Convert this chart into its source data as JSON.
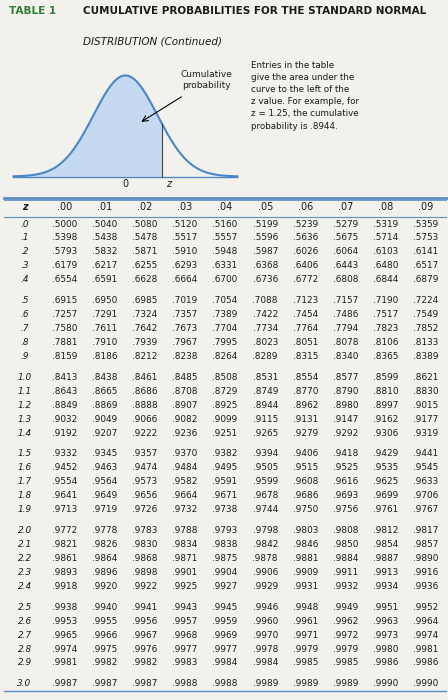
{
  "title_label": "TABLE 1",
  "title_main": "CUMULATIVE PROBABILITIES FOR THE STANDARD NORMAL",
  "title_sub": "DISTRIBUTION (Continued)",
  "note_text": "Entries in the table\ngive the area under the\ncurve to the left of the\nz value. For example, for\nz = 1.25, the cumulative\nprobability is .8944.",
  "cumulative_label": "Cumulative\nprobability",
  "col_headers": [
    "z",
    ".00",
    ".01",
    ".02",
    ".03",
    ".04",
    ".05",
    ".06",
    ".07",
    ".08",
    ".09"
  ],
  "rows": [
    [
      ".0",
      ".5000",
      ".5040",
      ".5080",
      ".5120",
      ".5160",
      ".5199",
      ".5239",
      ".5279",
      ".5319",
      ".5359"
    ],
    [
      ".1",
      ".5398",
      ".5438",
      ".5478",
      ".5517",
      ".5557",
      ".5596",
      ".5636",
      ".5675",
      ".5714",
      ".5753"
    ],
    [
      ".2",
      ".5793",
      ".5832",
      ".5871",
      ".5910",
      ".5948",
      ".5987",
      ".6026",
      ".6064",
      ".6103",
      ".6141"
    ],
    [
      ".3",
      ".6179",
      ".6217",
      ".6255",
      ".6293",
      ".6331",
      ".6368",
      ".6406",
      ".6443",
      ".6480",
      ".6517"
    ],
    [
      ".4",
      ".6554",
      ".6591",
      ".6628",
      ".6664",
      ".6700",
      ".6736",
      ".6772",
      ".6808",
      ".6844",
      ".6879"
    ],
    [
      ".5",
      ".6915",
      ".6950",
      ".6985",
      ".7019",
      ".7054",
      ".7088",
      ".7123",
      ".7157",
      ".7190",
      ".7224"
    ],
    [
      ".6",
      ".7257",
      ".7291",
      ".7324",
      ".7357",
      ".7389",
      ".7422",
      ".7454",
      ".7486",
      ".7517",
      ".7549"
    ],
    [
      ".7",
      ".7580",
      ".7611",
      ".7642",
      ".7673",
      ".7704",
      ".7734",
      ".7764",
      ".7794",
      ".7823",
      ".7852"
    ],
    [
      ".8",
      ".7881",
      ".7910",
      ".7939",
      ".7967",
      ".7995",
      ".8023",
      ".8051",
      ".8078",
      ".8106",
      ".8133"
    ],
    [
      ".9",
      ".8159",
      ".8186",
      ".8212",
      ".8238",
      ".8264",
      ".8289",
      ".8315",
      ".8340",
      ".8365",
      ".8389"
    ],
    [
      "1.0",
      ".8413",
      ".8438",
      ".8461",
      ".8485",
      ".8508",
      ".8531",
      ".8554",
      ".8577",
      ".8599",
      ".8621"
    ],
    [
      "1.1",
      ".8643",
      ".8665",
      ".8686",
      ".8708",
      ".8729",
      ".8749",
      ".8770",
      ".8790",
      ".8810",
      ".8830"
    ],
    [
      "1.2",
      ".8849",
      ".8869",
      ".8888",
      ".8907",
      ".8925",
      ".8944",
      ".8962",
      ".8980",
      ".8997",
      ".9015"
    ],
    [
      "1.3",
      ".9032",
      ".9049",
      ".9066",
      ".9082",
      ".9099",
      ".9115",
      ".9131",
      ".9147",
      ".9162",
      ".9177"
    ],
    [
      "1.4",
      ".9192",
      ".9207",
      ".9222",
      ".9236",
      ".9251",
      ".9265",
      ".9279",
      ".9292",
      ".9306",
      ".9319"
    ],
    [
      "1.5",
      ".9332",
      ".9345",
      ".9357",
      ".9370",
      ".9382",
      ".9394",
      ".9406",
      ".9418",
      ".9429",
      ".9441"
    ],
    [
      "1.6",
      ".9452",
      ".9463",
      ".9474",
      ".9484",
      ".9495",
      ".9505",
      ".9515",
      ".9525",
      ".9535",
      ".9545"
    ],
    [
      "1.7",
      ".9554",
      ".9564",
      ".9573",
      ".9582",
      ".9591",
      ".9599",
      ".9608",
      ".9616",
      ".9625",
      ".9633"
    ],
    [
      "1.8",
      ".9641",
      ".9649",
      ".9656",
      ".9664",
      ".9671",
      ".9678",
      ".9686",
      ".9693",
      ".9699",
      ".9706"
    ],
    [
      "1.9",
      ".9713",
      ".9719",
      ".9726",
      ".9732",
      ".9738",
      ".9744",
      ".9750",
      ".9756",
      ".9761",
      ".9767"
    ],
    [
      "2.0",
      ".9772",
      ".9778",
      ".9783",
      ".9788",
      ".9793",
      ".9798",
      ".9803",
      ".9808",
      ".9812",
      ".9817"
    ],
    [
      "2.1",
      ".9821",
      ".9826",
      ".9830",
      ".9834",
      ".9838",
      ".9842",
      ".9846",
      ".9850",
      ".9854",
      ".9857"
    ],
    [
      "2.2",
      ".9861",
      ".9864",
      ".9868",
      ".9871",
      ".9875",
      ".9878",
      ".9881",
      ".9884",
      ".9887",
      ".9890"
    ],
    [
      "2.3",
      ".9893",
      ".9896",
      ".9898",
      ".9901",
      ".9904",
      ".9906",
      ".9909",
      ".9911",
      ".9913",
      ".9916"
    ],
    [
      "2.4",
      ".9918",
      ".9920",
      ".9922",
      ".9925",
      ".9927",
      ".9929",
      ".9931",
      ".9932",
      ".9934",
      ".9936"
    ],
    [
      "2.5",
      ".9938",
      ".9940",
      ".9941",
      ".9943",
      ".9945",
      ".9946",
      ".9948",
      ".9949",
      ".9951",
      ".9952"
    ],
    [
      "2.6",
      ".9953",
      ".9955",
      ".9956",
      ".9957",
      ".9959",
      ".9960",
      ".9961",
      ".9962",
      ".9963",
      ".9964"
    ],
    [
      "2.7",
      ".9965",
      ".9966",
      ".9967",
      ".9968",
      ".9969",
      ".9970",
      ".9971",
      ".9972",
      ".9973",
      ".9974"
    ],
    [
      "2.8",
      ".9974",
      ".9975",
      ".9976",
      ".9977",
      ".9977",
      ".9978",
      ".9979",
      ".9979",
      ".9980",
      ".9981"
    ],
    [
      "2.9",
      ".9981",
      ".9982",
      ".9982",
      ".9983",
      ".9984",
      ".9984",
      ".9985",
      ".9985",
      ".9986",
      ".9986"
    ],
    [
      "3.0",
      ".9987",
      ".9987",
      ".9987",
      ".9988",
      ".9988",
      ".9989",
      ".9989",
      ".9989",
      ".9990",
      ".9990"
    ]
  ],
  "group_breaks": [
    4,
    9,
    14,
    19,
    24,
    29
  ],
  "bg_color": "#f2f1ec",
  "table_bg_color": "#ffffff",
  "table_label_color": "#2e7d32",
  "header_line_color": "#5b8ec4",
  "curve_color": "#4a86c8",
  "curve_fill_color": "#c5d9f0",
  "text_color": "#1a1a1a"
}
